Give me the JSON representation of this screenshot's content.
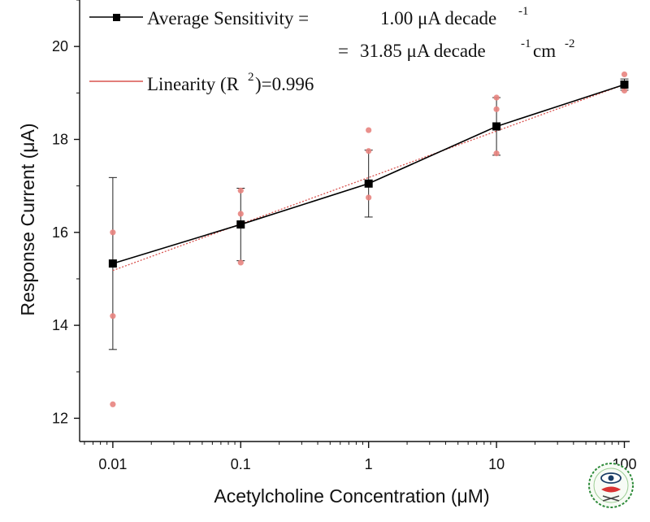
{
  "chart_data": {
    "type": "line",
    "xscale": "log",
    "xlabel": "Acetylcholine Concentration (μM)",
    "ylabel": "Response Current (μA)",
    "xlim": [
      0.0055,
      110
    ],
    "ylim": [
      11.5,
      21
    ],
    "xticks": [
      0.01,
      0.1,
      1,
      10,
      100
    ],
    "xtick_labels": [
      "0.01",
      "0.1",
      "1",
      "10",
      "100"
    ],
    "yticks": [
      12,
      14,
      16,
      18,
      20
    ],
    "ytick_labels": [
      "12",
      "14",
      "16",
      "18",
      "20"
    ],
    "grid": false,
    "legend_position": "top-left",
    "series": [
      {
        "name": "Average Sensitivity",
        "color": "#000000",
        "marker": "square",
        "x": [
          0.01,
          0.1,
          1,
          10,
          100
        ],
        "y": [
          15.33,
          16.17,
          17.05,
          18.28,
          19.18
        ],
        "error": [
          1.85,
          0.78,
          0.72,
          0.62,
          0.12
        ]
      },
      {
        "name": "Linearity",
        "color": "#d9534f",
        "line_style": "dotted",
        "x": [
          0.01,
          100
        ],
        "y": [
          15.18,
          19.18
        ]
      }
    ],
    "replicates": {
      "color": "#e8847f",
      "x": [
        0.01,
        0.01,
        0.01,
        0.1,
        0.1,
        0.1,
        1,
        1,
        1,
        10,
        10,
        10,
        100,
        100
      ],
      "y": [
        16.0,
        14.2,
        12.3,
        16.9,
        16.4,
        15.35,
        18.2,
        17.75,
        16.75,
        18.9,
        18.65,
        17.7,
        19.4,
        19.05
      ]
    },
    "legend": {
      "line1_label": "Average Sensitivity =",
      "line1_value": "1.00 μA decade",
      "line1_sup": "-1",
      "line2_eq": "=",
      "line2_value_a": "31.85 μA decade",
      "line2_sup_a": "-1",
      "line2_value_b": " cm",
      "line2_sup_b": "-2",
      "line3_label_a": "Linearity (R",
      "line3_sup": "2",
      "line3_label_b": ")=0.996"
    }
  },
  "logo": {
    "icon": "eye-seal-icon"
  }
}
